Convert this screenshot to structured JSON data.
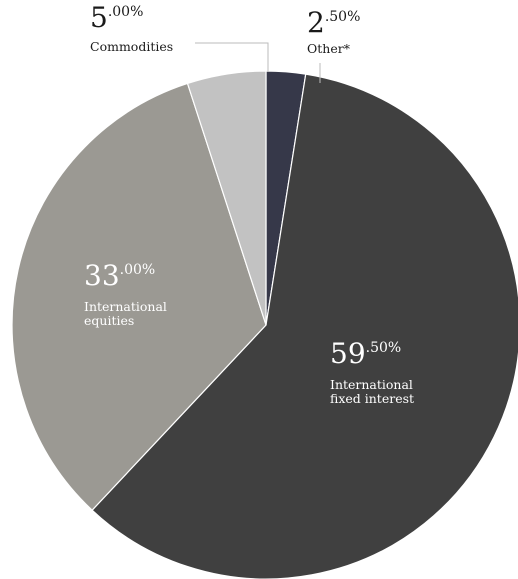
{
  "chart_data": {
    "type": "pie",
    "slices": [
      {
        "key": "other",
        "int": "2",
        "dec": ".50%",
        "value": 2.5,
        "label_lines": [
          "Other*"
        ],
        "color": "#363849",
        "text_color": "#1a1a1a",
        "outside": true
      },
      {
        "key": "fixed",
        "int": "59",
        "dec": ".50%",
        "value": 59.5,
        "label_lines": [
          "International",
          "fixed interest"
        ],
        "color": "#404040",
        "text_color": "#ffffff",
        "outside": false
      },
      {
        "key": "equities",
        "int": "33",
        "dec": ".00%",
        "value": 33.0,
        "label_lines": [
          "International",
          "equities"
        ],
        "color": "#9b9993",
        "text_color": "#ffffff",
        "outside": false
      },
      {
        "key": "commodities",
        "int": "5",
        "dec": ".00%",
        "value": 5.0,
        "label_lines": [
          "Commodities"
        ],
        "color": "#c2c2c2",
        "text_color": "#1a1a1a",
        "outside": true
      }
    ],
    "leader_color": "#bbbbbb"
  }
}
